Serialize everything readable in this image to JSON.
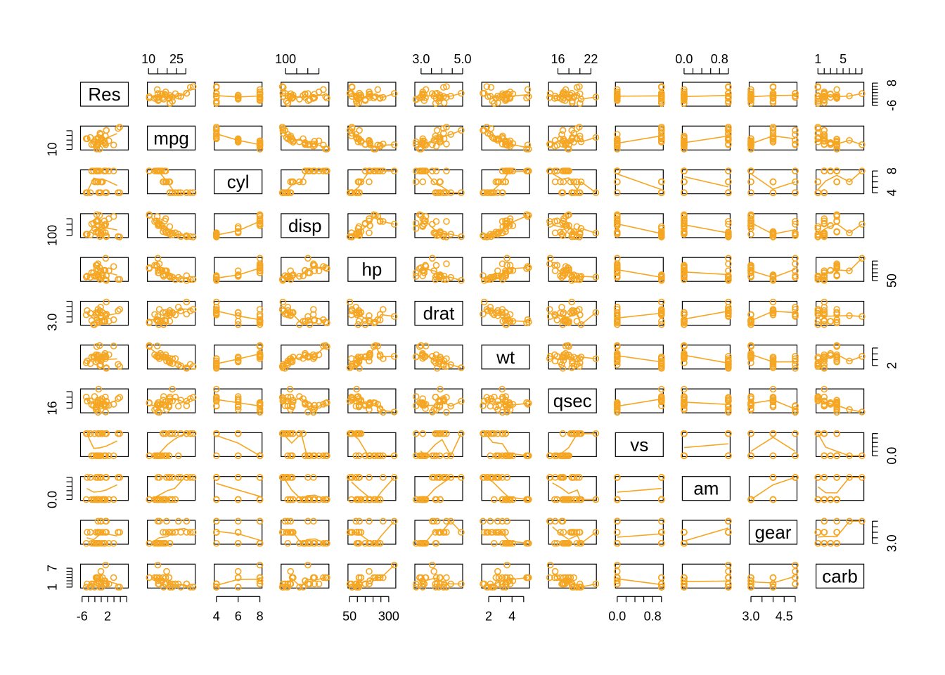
{
  "chart_data": {
    "type": "scatter",
    "matrix": true,
    "title": "",
    "point_color": "#F5A623",
    "variables": [
      {
        "name": "Res",
        "range": [
          -6.5,
          8.5
        ],
        "ticks": [
          -6,
          2
        ],
        "tick_labels": [
          "-6",
          "2"
        ],
        "minor": [
          -6,
          -4,
          -2,
          0,
          2,
          4,
          6,
          8
        ],
        "right_ticks": [
          -6,
          8
        ],
        "right_labels": [
          "-6",
          "8"
        ],
        "right_minor": [
          -6,
          -4,
          -2,
          0,
          2,
          4,
          6,
          8
        ]
      },
      {
        "name": "mpg",
        "range": [
          9.4,
          35
        ],
        "ticks": [
          10,
          25
        ],
        "tick_labels": [
          "10",
          "25"
        ],
        "minor": [
          10,
          15,
          20,
          25,
          30
        ],
        "left_ticks": [
          10
        ],
        "left_labels": [
          "10"
        ],
        "left_minor": [
          10,
          15,
          20,
          25,
          30
        ]
      },
      {
        "name": "cyl",
        "range": [
          3.8,
          8.2
        ],
        "ticks": [
          4,
          6,
          8
        ],
        "tick_labels": [
          "4",
          "6",
          "8"
        ],
        "minor": [
          4,
          6,
          8
        ],
        "right_ticks": [
          4,
          8
        ],
        "right_labels": [
          "4",
          "8"
        ],
        "right_minor": [
          4,
          5,
          6,
          7,
          8
        ]
      },
      {
        "name": "disp",
        "range": [
          60,
          490
        ],
        "ticks": [
          100
        ],
        "tick_labels": [
          "100"
        ],
        "minor": [
          100,
          200,
          300,
          400
        ],
        "left_ticks": [
          100
        ],
        "left_labels": [
          "100"
        ],
        "left_minor": [
          100,
          200,
          300,
          400
        ]
      },
      {
        "name": "hp",
        "range": [
          40,
          345
        ],
        "ticks": [
          50,
          300
        ],
        "tick_labels": [
          "50",
          "300"
        ],
        "minor": [
          50,
          100,
          150,
          200,
          250,
          300
        ],
        "right_ticks": [
          50
        ],
        "right_labels": [
          "50"
        ],
        "right_minor": [
          50,
          100,
          150,
          200,
          250,
          300
        ]
      },
      {
        "name": "drat",
        "range": [
          2.7,
          5.0
        ],
        "ticks": [
          3.0,
          5.0
        ],
        "tick_labels": [
          "3.0",
          "5.0"
        ],
        "minor": [
          3.0,
          3.5,
          4.0,
          4.5,
          5.0
        ],
        "left_ticks": [
          3.0
        ],
        "left_labels": [
          "3.0"
        ],
        "left_minor": [
          3.0,
          3.5,
          4.0,
          4.5,
          5.0
        ]
      },
      {
        "name": "wt",
        "range": [
          1.4,
          5.5
        ],
        "ticks": [
          2,
          4
        ],
        "tick_labels": [
          "2",
          "4"
        ],
        "minor": [
          2,
          3,
          4,
          5
        ],
        "right_ticks": [
          2
        ],
        "right_labels": [
          "2"
        ],
        "right_minor": [
          2,
          3,
          4,
          5
        ]
      },
      {
        "name": "qsec",
        "range": [
          14.3,
          23
        ],
        "ticks": [
          16,
          22
        ],
        "tick_labels": [
          "16",
          "22"
        ],
        "minor": [
          16,
          18,
          20,
          22
        ],
        "left_ticks": [
          16
        ],
        "left_labels": [
          "16"
        ],
        "left_minor": [
          16,
          18,
          20,
          22
        ]
      },
      {
        "name": "vs",
        "range": [
          -0.04,
          1.04
        ],
        "ticks": [
          0.0,
          0.8
        ],
        "tick_labels": [
          "0.0",
          "0.8"
        ],
        "minor": [
          0,
          0.2,
          0.4,
          0.6,
          0.8,
          1.0
        ],
        "right_ticks": [
          0.0
        ],
        "right_labels": [
          "0.0"
        ],
        "right_minor": [
          0,
          0.2,
          0.4,
          0.6,
          0.8,
          1.0
        ]
      },
      {
        "name": "am",
        "range": [
          -0.04,
          1.04
        ],
        "ticks": [
          0.0,
          0.8
        ],
        "tick_labels": [
          "0.0",
          "0.8"
        ],
        "minor": [
          0,
          0.2,
          0.4,
          0.6,
          0.8,
          1.0
        ],
        "left_ticks": [
          0.0
        ],
        "left_labels": [
          "0.0"
        ],
        "left_minor": [
          0,
          0.2,
          0.4,
          0.6,
          0.8,
          1.0
        ]
      },
      {
        "name": "gear",
        "range": [
          2.92,
          5.08
        ],
        "ticks": [
          3.0,
          4.5
        ],
        "tick_labels": [
          "3.0",
          "4.5"
        ],
        "minor": [
          3.0,
          3.5,
          4.0,
          4.5,
          5.0
        ],
        "right_ticks": [
          3.0
        ],
        "right_labels": [
          "3.0"
        ],
        "right_minor": [
          3.0,
          3.5,
          4.0,
          4.5,
          5.0
        ]
      },
      {
        "name": "carb",
        "range": [
          0.7,
          8.3
        ],
        "ticks": [
          1,
          5
        ],
        "tick_labels": [
          "1",
          "5"
        ],
        "minor": [
          1,
          2,
          3,
          4,
          5,
          6,
          7,
          8
        ],
        "left_ticks": [
          1,
          7
        ],
        "left_labels": [
          "1",
          "7"
        ],
        "left_minor": [
          1,
          2,
          3,
          4,
          5,
          6,
          7
        ]
      }
    ],
    "observations": [
      {
        "mpg": 21.0,
        "cyl": 6,
        "disp": 160.0,
        "hp": 110,
        "drat": 3.9,
        "wt": 2.62,
        "qsec": 16.46,
        "vs": 0,
        "am": 1,
        "gear": 4,
        "carb": 4,
        "Res": -1.6
      },
      {
        "mpg": 21.0,
        "cyl": 6,
        "disp": 160.0,
        "hp": 110,
        "drat": 3.9,
        "wt": 2.875,
        "qsec": 17.02,
        "vs": 0,
        "am": 1,
        "gear": 4,
        "carb": 4,
        "Res": -1.1
      },
      {
        "mpg": 22.8,
        "cyl": 4,
        "disp": 108.0,
        "hp": 93,
        "drat": 3.85,
        "wt": 2.32,
        "qsec": 18.61,
        "vs": 1,
        "am": 1,
        "gear": 4,
        "carb": 1,
        "Res": -3.4
      },
      {
        "mpg": 21.4,
        "cyl": 6,
        "disp": 258.0,
        "hp": 110,
        "drat": 3.08,
        "wt": 3.215,
        "qsec": 19.44,
        "vs": 1,
        "am": 0,
        "gear": 3,
        "carb": 1,
        "Res": 0.2
      },
      {
        "mpg": 18.7,
        "cyl": 8,
        "disp": 360.0,
        "hp": 175,
        "drat": 3.15,
        "wt": 3.44,
        "qsec": 17.02,
        "vs": 0,
        "am": 0,
        "gear": 3,
        "carb": 2,
        "Res": 1.0
      },
      {
        "mpg": 18.1,
        "cyl": 6,
        "disp": 225.0,
        "hp": 105,
        "drat": 2.76,
        "wt": 3.46,
        "qsec": 20.22,
        "vs": 1,
        "am": 0,
        "gear": 3,
        "carb": 1,
        "Res": -2.1
      },
      {
        "mpg": 14.3,
        "cyl": 8,
        "disp": 360.0,
        "hp": 245,
        "drat": 3.21,
        "wt": 3.57,
        "qsec": 15.84,
        "vs": 0,
        "am": 0,
        "gear": 3,
        "carb": 4,
        "Res": -1.3
      },
      {
        "mpg": 24.4,
        "cyl": 4,
        "disp": 146.7,
        "hp": 62,
        "drat": 3.69,
        "wt": 3.19,
        "qsec": 20.0,
        "vs": 1,
        "am": 0,
        "gear": 4,
        "carb": 2,
        "Res": 1.3
      },
      {
        "mpg": 22.8,
        "cyl": 4,
        "disp": 140.8,
        "hp": 95,
        "drat": 3.92,
        "wt": 3.15,
        "qsec": 22.9,
        "vs": 1,
        "am": 0,
        "gear": 4,
        "carb": 2,
        "Res": -0.8
      },
      {
        "mpg": 19.2,
        "cyl": 6,
        "disp": 167.6,
        "hp": 123,
        "drat": 3.92,
        "wt": 3.44,
        "qsec": 18.3,
        "vs": 1,
        "am": 0,
        "gear": 4,
        "carb": 4,
        "Res": 0.4
      },
      {
        "mpg": 17.8,
        "cyl": 6,
        "disp": 167.6,
        "hp": 123,
        "drat": 3.92,
        "wt": 3.44,
        "qsec": 18.9,
        "vs": 1,
        "am": 0,
        "gear": 4,
        "carb": 4,
        "Res": -1.0
      },
      {
        "mpg": 16.4,
        "cyl": 8,
        "disp": 275.8,
        "hp": 180,
        "drat": 3.07,
        "wt": 4.07,
        "qsec": 17.4,
        "vs": 0,
        "am": 0,
        "gear": 3,
        "carb": 3,
        "Res": 1.2
      },
      {
        "mpg": 17.3,
        "cyl": 8,
        "disp": 275.8,
        "hp": 180,
        "drat": 3.07,
        "wt": 3.73,
        "qsec": 17.6,
        "vs": 0,
        "am": 0,
        "gear": 3,
        "carb": 3,
        "Res": 0.9
      },
      {
        "mpg": 15.2,
        "cyl": 8,
        "disp": 275.8,
        "hp": 180,
        "drat": 3.07,
        "wt": 3.78,
        "qsec": 18.0,
        "vs": 0,
        "am": 0,
        "gear": 3,
        "carb": 3,
        "Res": -1.0
      },
      {
        "mpg": 10.4,
        "cyl": 8,
        "disp": 472.0,
        "hp": 205,
        "drat": 2.93,
        "wt": 5.25,
        "qsec": 17.98,
        "vs": 0,
        "am": 0,
        "gear": 3,
        "carb": 4,
        "Res": -1.4
      },
      {
        "mpg": 10.4,
        "cyl": 8,
        "disp": 460.0,
        "hp": 215,
        "drat": 3.0,
        "wt": 5.424,
        "qsec": 17.82,
        "vs": 0,
        "am": 0,
        "gear": 3,
        "carb": 4,
        "Res": -0.5
      },
      {
        "mpg": 14.7,
        "cyl": 8,
        "disp": 440.0,
        "hp": 230,
        "drat": 3.23,
        "wt": 5.345,
        "qsec": 17.42,
        "vs": 0,
        "am": 0,
        "gear": 3,
        "carb": 4,
        "Res": 3.9
      },
      {
        "mpg": 32.4,
        "cyl": 4,
        "disp": 78.7,
        "hp": 66,
        "drat": 4.08,
        "wt": 2.2,
        "qsec": 19.47,
        "vs": 1,
        "am": 1,
        "gear": 4,
        "carb": 1,
        "Res": 5.3
      },
      {
        "mpg": 30.4,
        "cyl": 4,
        "disp": 75.7,
        "hp": 52,
        "drat": 4.93,
        "wt": 1.615,
        "qsec": 18.52,
        "vs": 1,
        "am": 1,
        "gear": 4,
        "carb": 2,
        "Res": 1.6
      },
      {
        "mpg": 33.9,
        "cyl": 4,
        "disp": 71.1,
        "hp": 65,
        "drat": 4.22,
        "wt": 1.835,
        "qsec": 19.9,
        "vs": 1,
        "am": 1,
        "gear": 4,
        "carb": 1,
        "Res": 5.8
      },
      {
        "mpg": 21.5,
        "cyl": 4,
        "disp": 120.1,
        "hp": 97,
        "drat": 3.7,
        "wt": 2.465,
        "qsec": 20.01,
        "vs": 1,
        "am": 0,
        "gear": 3,
        "carb": 1,
        "Res": -4.7
      },
      {
        "mpg": 15.5,
        "cyl": 8,
        "disp": 318.0,
        "hp": 150,
        "drat": 2.76,
        "wt": 3.52,
        "qsec": 16.87,
        "vs": 0,
        "am": 0,
        "gear": 3,
        "carb": 2,
        "Res": -2.4
      },
      {
        "mpg": 15.2,
        "cyl": 8,
        "disp": 304.0,
        "hp": 150,
        "drat": 3.15,
        "wt": 3.435,
        "qsec": 17.3,
        "vs": 0,
        "am": 0,
        "gear": 3,
        "carb": 2,
        "Res": -3.0
      },
      {
        "mpg": 13.3,
        "cyl": 8,
        "disp": 350.0,
        "hp": 245,
        "drat": 3.73,
        "wt": 3.84,
        "qsec": 15.41,
        "vs": 0,
        "am": 0,
        "gear": 3,
        "carb": 4,
        "Res": -1.6
      },
      {
        "mpg": 19.2,
        "cyl": 8,
        "disp": 400.0,
        "hp": 175,
        "drat": 3.08,
        "wt": 3.845,
        "qsec": 17.05,
        "vs": 0,
        "am": 0,
        "gear": 3,
        "carb": 2,
        "Res": 2.4
      },
      {
        "mpg": 27.3,
        "cyl": 4,
        "disp": 79.0,
        "hp": 66,
        "drat": 4.08,
        "wt": 1.935,
        "qsec": 18.9,
        "vs": 1,
        "am": 1,
        "gear": 4,
        "carb": 1,
        "Res": -0.4
      },
      {
        "mpg": 26.0,
        "cyl": 4,
        "disp": 120.3,
        "hp": 91,
        "drat": 4.43,
        "wt": 2.14,
        "qsec": 16.7,
        "vs": 0,
        "am": 1,
        "gear": 5,
        "carb": 2,
        "Res": -0.2
      },
      {
        "mpg": 30.4,
        "cyl": 4,
        "disp": 95.1,
        "hp": 113,
        "drat": 3.77,
        "wt": 1.513,
        "qsec": 16.9,
        "vs": 1,
        "am": 1,
        "gear": 5,
        "carb": 2,
        "Res": 1.6
      },
      {
        "mpg": 15.8,
        "cyl": 8,
        "disp": 351.0,
        "hp": 264,
        "drat": 4.22,
        "wt": 3.17,
        "qsec": 14.5,
        "vs": 0,
        "am": 1,
        "gear": 5,
        "carb": 4,
        "Res": -1.0
      },
      {
        "mpg": 19.7,
        "cyl": 6,
        "disp": 145.0,
        "hp": 175,
        "drat": 3.62,
        "wt": 2.77,
        "qsec": 15.5,
        "vs": 0,
        "am": 1,
        "gear": 5,
        "carb": 6,
        "Res": -0.1
      },
      {
        "mpg": 15.0,
        "cyl": 8,
        "disp": 301.0,
        "hp": 335,
        "drat": 3.54,
        "wt": 3.57,
        "qsec": 14.6,
        "vs": 0,
        "am": 1,
        "gear": 5,
        "carb": 8,
        "Res": 1.4
      },
      {
        "mpg": 21.4,
        "cyl": 4,
        "disp": 121.0,
        "hp": 109,
        "drat": 4.11,
        "wt": 2.78,
        "qsec": 18.6,
        "vs": 1,
        "am": 1,
        "gear": 4,
        "carb": 2,
        "Res": -4.4
      }
    ]
  }
}
